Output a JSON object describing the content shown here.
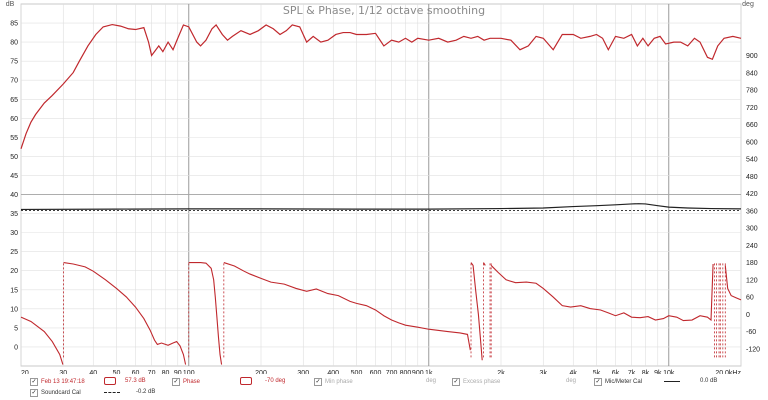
{
  "chart_data": {
    "type": "line",
    "title": "SPL & Phase, 1/12 octave smoothing",
    "x_scale": "log",
    "xlim": [
      20,
      20000
    ],
    "x_ticks": [
      {
        "v": 20,
        "l": "20"
      },
      {
        "v": 30,
        "l": "30"
      },
      {
        "v": 40,
        "l": "40"
      },
      {
        "v": 50,
        "l": "50"
      },
      {
        "v": 60,
        "l": "60"
      },
      {
        "v": 70,
        "l": "70"
      },
      {
        "v": 80,
        "l": "80"
      },
      {
        "v": 90,
        "l": "90"
      },
      {
        "v": 100,
        "l": "100"
      },
      {
        "v": 200,
        "l": "200"
      },
      {
        "v": 300,
        "l": "300"
      },
      {
        "v": 400,
        "l": "400"
      },
      {
        "v": 500,
        "l": "500"
      },
      {
        "v": 600,
        "l": "600"
      },
      {
        "v": 700,
        "l": "700"
      },
      {
        "v": 800,
        "l": "800"
      },
      {
        "v": 900,
        "l": "900"
      },
      {
        "v": 1000,
        "l": "1k"
      },
      {
        "v": 2000,
        "l": "2k"
      },
      {
        "v": 3000,
        "l": "3k"
      },
      {
        "v": 4000,
        "l": "4k"
      },
      {
        "v": 5000,
        "l": "5k"
      },
      {
        "v": 6000,
        "l": "6k"
      },
      {
        "v": 7000,
        "l": "7k"
      },
      {
        "v": 8000,
        "l": "8k"
      },
      {
        "v": 9000,
        "l": "9k"
      },
      {
        "v": 10000,
        "l": "10k"
      },
      {
        "v": 20000,
        "l": "20.0kHz"
      }
    ],
    "y_left": {
      "unit": "dB",
      "ylim": [
        -5,
        90
      ],
      "ticks": [
        0,
        5,
        10,
        15,
        20,
        25,
        30,
        35,
        40,
        45,
        50,
        55,
        60,
        65,
        70,
        75,
        80,
        85
      ]
    },
    "y_right": {
      "unit": "deg",
      "ylim": [
        -180,
        1080
      ],
      "ticks": [
        -120,
        -60,
        0,
        60,
        120,
        180,
        240,
        300,
        360,
        420,
        480,
        540,
        600,
        660,
        720,
        780,
        840,
        900
      ]
    },
    "grid": true,
    "series": [
      {
        "name": "Phase",
        "axis": "right",
        "color": "#c0282d",
        "wrapped": true,
        "points": [
          [
            20,
            -10
          ],
          [
            22,
            -25
          ],
          [
            25,
            -60
          ],
          [
            27,
            -95
          ],
          [
            29,
            -140
          ],
          [
            29.9,
            -175
          ],
          [
            30.1,
            180
          ],
          [
            33,
            175
          ],
          [
            37,
            165
          ],
          [
            40,
            150
          ],
          [
            45,
            120
          ],
          [
            50,
            90
          ],
          [
            55,
            60
          ],
          [
            60,
            25
          ],
          [
            65,
            -15
          ],
          [
            69,
            -55
          ],
          [
            72,
            -90
          ],
          [
            74,
            -105
          ],
          [
            77,
            -100
          ],
          [
            82,
            -108
          ],
          [
            86,
            -100
          ],
          [
            89,
            -95
          ],
          [
            92,
            -110
          ],
          [
            95,
            -140
          ],
          [
            97,
            -175
          ],
          [
            100,
            180
          ],
          [
            112,
            180
          ],
          [
            118,
            178
          ],
          [
            124,
            160
          ],
          [
            127,
            120
          ],
          [
            129,
            60
          ],
          [
            131,
            -10
          ],
          [
            133,
            -80
          ],
          [
            135,
            -140
          ],
          [
            137,
            -175
          ],
          [
            140,
            180
          ],
          [
            155,
            168
          ],
          [
            170,
            150
          ],
          [
            180,
            140
          ],
          [
            200,
            125
          ],
          [
            220,
            112
          ],
          [
            250,
            105
          ],
          [
            280,
            90
          ],
          [
            310,
            80
          ],
          [
            340,
            88
          ],
          [
            380,
            72
          ],
          [
            420,
            65
          ],
          [
            470,
            45
          ],
          [
            500,
            38
          ],
          [
            550,
            30
          ],
          [
            600,
            15
          ],
          [
            650,
            -5
          ],
          [
            700,
            -20
          ],
          [
            750,
            -30
          ],
          [
            800,
            -38
          ],
          [
            900,
            -45
          ],
          [
            1000,
            -52
          ],
          [
            1200,
            -60
          ],
          [
            1350,
            -65
          ],
          [
            1450,
            -70
          ],
          [
            1490,
            -125
          ],
          [
            1500,
            180
          ],
          [
            1530,
            170
          ],
          [
            1570,
            80
          ],
          [
            1610,
            0
          ],
          [
            1640,
            -80
          ],
          [
            1670,
            -160
          ],
          [
            1690,
            180
          ],
          [
            1720,
            170
          ],
          [
            1800,
            -100
          ],
          [
            1820,
            170
          ],
          [
            1950,
            145
          ],
          [
            2100,
            120
          ],
          [
            2300,
            110
          ],
          [
            2550,
            112
          ],
          [
            2800,
            108
          ],
          [
            3000,
            90
          ],
          [
            3300,
            60
          ],
          [
            3600,
            30
          ],
          [
            3900,
            25
          ],
          [
            4300,
            30
          ],
          [
            4700,
            20
          ],
          [
            5200,
            15
          ],
          [
            5600,
            5
          ],
          [
            6000,
            -5
          ],
          [
            6500,
            5
          ],
          [
            7000,
            -10
          ],
          [
            7600,
            -12
          ],
          [
            8200,
            -8
          ],
          [
            8800,
            -20
          ],
          [
            9500,
            -15
          ],
          [
            10000,
            -5
          ],
          [
            10800,
            -10
          ],
          [
            11500,
            -22
          ],
          [
            12500,
            -20
          ],
          [
            13500,
            -5
          ],
          [
            14500,
            -10
          ],
          [
            15000,
            -20
          ],
          [
            15300,
            175
          ],
          [
            15500,
            -170
          ],
          [
            15800,
            170
          ],
          [
            16200,
            -160
          ],
          [
            16400,
            175
          ],
          [
            16800,
            -170
          ],
          [
            17200,
            170
          ],
          [
            17600,
            90
          ],
          [
            18200,
            65
          ],
          [
            19000,
            58
          ],
          [
            20000,
            50
          ]
        ]
      },
      {
        "name": "SPL",
        "axis": "left",
        "color": "#c0282d",
        "points": [
          [
            20,
            52
          ],
          [
            21,
            56
          ],
          [
            22,
            59
          ],
          [
            23,
            61
          ],
          [
            25,
            64
          ],
          [
            27,
            66
          ],
          [
            30,
            69
          ],
          [
            33,
            72
          ],
          [
            35,
            75
          ],
          [
            38,
            79
          ],
          [
            41,
            82
          ],
          [
            44,
            84
          ],
          [
            48,
            84.6
          ],
          [
            52,
            84.2
          ],
          [
            56,
            83.5
          ],
          [
            60,
            83.3
          ],
          [
            65,
            83.8
          ],
          [
            68,
            80
          ],
          [
            70,
            76.5
          ],
          [
            72,
            77.5
          ],
          [
            75,
            79
          ],
          [
            78,
            77.5
          ],
          [
            82,
            80
          ],
          [
            86,
            78
          ],
          [
            90,
            81
          ],
          [
            95,
            84.5
          ],
          [
            100,
            84
          ],
          [
            108,
            80
          ],
          [
            112,
            79
          ],
          [
            118,
            80.5
          ],
          [
            125,
            83.5
          ],
          [
            130,
            84.5
          ],
          [
            138,
            82
          ],
          [
            145,
            80.5
          ],
          [
            152,
            81.5
          ],
          [
            165,
            83
          ],
          [
            180,
            82
          ],
          [
            195,
            83
          ],
          [
            210,
            84.5
          ],
          [
            225,
            83.5
          ],
          [
            240,
            82
          ],
          [
            255,
            83
          ],
          [
            270,
            84.5
          ],
          [
            290,
            84
          ],
          [
            310,
            80
          ],
          [
            330,
            81.5
          ],
          [
            355,
            80
          ],
          [
            380,
            80.5
          ],
          [
            410,
            82
          ],
          [
            440,
            82.5
          ],
          [
            470,
            82.5
          ],
          [
            500,
            82
          ],
          [
            550,
            82
          ],
          [
            600,
            82.3
          ],
          [
            650,
            79
          ],
          [
            700,
            80.5
          ],
          [
            750,
            80
          ],
          [
            800,
            81
          ],
          [
            850,
            80
          ],
          [
            900,
            81
          ],
          [
            1000,
            80.5
          ],
          [
            1100,
            81
          ],
          [
            1200,
            80
          ],
          [
            1300,
            80.5
          ],
          [
            1400,
            81.5
          ],
          [
            1500,
            81
          ],
          [
            1600,
            81.5
          ],
          [
            1700,
            80.5
          ],
          [
            1800,
            81
          ],
          [
            2000,
            81
          ],
          [
            2200,
            80.5
          ],
          [
            2400,
            78
          ],
          [
            2600,
            79
          ],
          [
            2800,
            81.5
          ],
          [
            3000,
            81
          ],
          [
            3300,
            78
          ],
          [
            3600,
            82
          ],
          [
            4000,
            82
          ],
          [
            4300,
            81
          ],
          [
            4700,
            81.5
          ],
          [
            5000,
            82
          ],
          [
            5300,
            81
          ],
          [
            5600,
            78
          ],
          [
            6000,
            81.5
          ],
          [
            6500,
            81
          ],
          [
            7000,
            82
          ],
          [
            7400,
            79
          ],
          [
            7800,
            81
          ],
          [
            8200,
            79
          ],
          [
            8700,
            81
          ],
          [
            9200,
            81.5
          ],
          [
            9700,
            79.5
          ],
          [
            10500,
            80
          ],
          [
            11200,
            80
          ],
          [
            12000,
            79
          ],
          [
            12800,
            81
          ],
          [
            13500,
            80
          ],
          [
            14500,
            76
          ],
          [
            15200,
            75.5
          ],
          [
            16000,
            79
          ],
          [
            17000,
            81
          ],
          [
            18500,
            81.5
          ],
          [
            20000,
            81
          ]
        ]
      },
      {
        "name": "Mic/Meter Cal",
        "axis": "right",
        "color": "#222222",
        "points": [
          [
            20,
            365
          ],
          [
            50,
            366
          ],
          [
            100,
            367
          ],
          [
            200,
            367
          ],
          [
            500,
            366
          ],
          [
            1000,
            366
          ],
          [
            2000,
            368
          ],
          [
            3000,
            370
          ],
          [
            4000,
            375
          ],
          [
            5000,
            378
          ],
          [
            6000,
            381
          ],
          [
            7000,
            384
          ],
          [
            7500,
            385
          ],
          [
            8000,
            384
          ],
          [
            9000,
            378
          ],
          [
            10000,
            373
          ],
          [
            12000,
            370
          ],
          [
            15000,
            368
          ],
          [
            20000,
            367
          ]
        ]
      },
      {
        "name": "Soundcard Cal",
        "axis": "right",
        "color": "#222222",
        "dashed": true,
        "points": [
          [
            20,
            361
          ],
          [
            20000,
            361
          ]
        ]
      }
    ]
  },
  "legend": {
    "row1": [
      {
        "checked": true,
        "label": "Feb 13 19:47:18",
        "value": "57.3 dB",
        "color": "#c0282d"
      },
      {
        "checked": true,
        "label": "Phase",
        "value": "-70 deg",
        "color": "#c0282d"
      },
      {
        "checked": true,
        "label": "Min phase",
        "value": "deg",
        "color": "#aaaaaa"
      },
      {
        "checked": true,
        "label": "Excess phase",
        "value": "deg",
        "color": "#aaaaaa"
      },
      {
        "checked": true,
        "label": "Mic/Meter Cal",
        "value": "0.0 dB",
        "color": "#222222"
      }
    ],
    "row2": [
      {
        "checked": true,
        "label": "Soundcard Cal",
        "value": "-0.2 dB",
        "color": "#222222"
      }
    ]
  }
}
